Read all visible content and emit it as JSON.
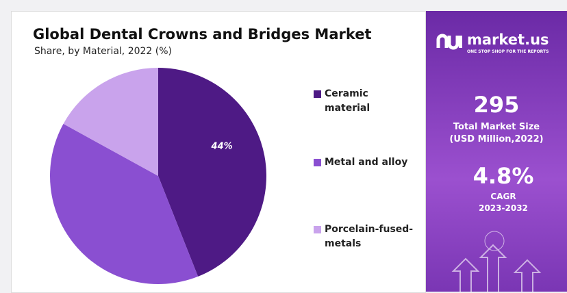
{
  "chart_data": {
    "type": "pie",
    "title": "Global Dental Crowns and Bridges Market",
    "subtitle": "Share, by Material, 2022 (%)",
    "categories": [
      "Ceramic material",
      "Metal and alloy",
      "Porcelain-fused-metals"
    ],
    "values": [
      44,
      39,
      17
    ],
    "value_labels": [
      "44%",
      null,
      null
    ],
    "colors": [
      "#4e1a85",
      "#8a4fd1",
      "#c9a3ec"
    ]
  },
  "side_panel": {
    "brand": "market.us",
    "tagline": "ONE STOP SHOP FOR THE REPORTS",
    "market_size": "295",
    "market_size_label": "Total Market Size",
    "market_size_unit": "(USD Million,2022)",
    "cagr": "4.8%",
    "cagr_label": "CAGR",
    "cagr_period": "2023-2032"
  }
}
